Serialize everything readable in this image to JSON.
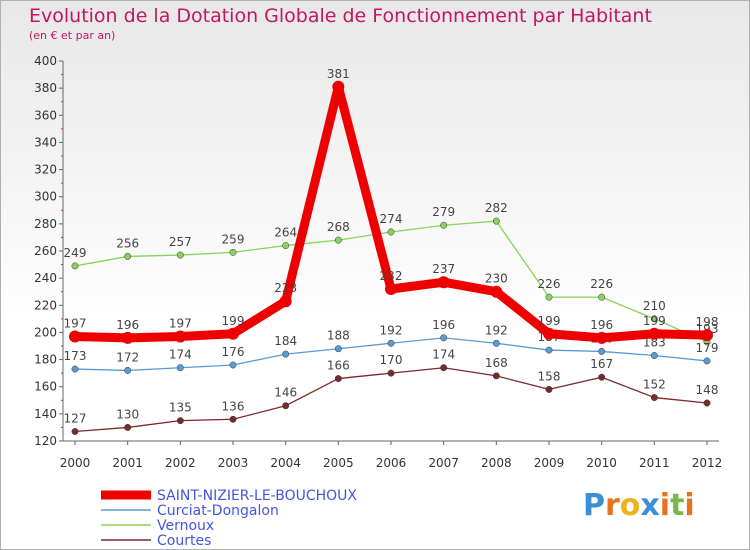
{
  "header": {
    "title": "Evolution de la Dotation Globale de Fonctionnement par Habitant",
    "subtitle": "(en € et par an)"
  },
  "brand": {
    "text": "Proxiti",
    "colors": [
      "#3b8fd6",
      "#e8731c",
      "#f0b21b",
      "#3b8fd6",
      "#e8731c",
      "#7ab648",
      "#e8731c"
    ]
  },
  "chart_data": {
    "type": "line",
    "title": "Evolution de la Dotation Globale de Fonctionnement par Habitant",
    "subtitle": "(en € et par an)",
    "xlabel": "",
    "ylabel": "",
    "x": [
      "2000",
      "2001",
      "2002",
      "2003",
      "2004",
      "2005",
      "2006",
      "2007",
      "2008",
      "2009",
      "2010",
      "2011",
      "2012"
    ],
    "ylim": [
      120,
      400
    ],
    "yticks": [
      120,
      140,
      160,
      180,
      200,
      220,
      240,
      260,
      280,
      300,
      320,
      340,
      360,
      380,
      400
    ],
    "grid": false,
    "legend": "bottom-left",
    "series": [
      {
        "name": "SAINT-NIZIER-LE-BOUCHOUX",
        "color": "#ee0000",
        "values": [
          197,
          196,
          197,
          199,
          223,
          381,
          232,
          237,
          230,
          199,
          196,
          199,
          198
        ]
      },
      {
        "name": "Curciat-Dongalon",
        "color": "#5b9bd5",
        "values": [
          173,
          172,
          174,
          176,
          184,
          188,
          192,
          196,
          192,
          187,
          186,
          183,
          179
        ]
      },
      {
        "name": "Vernoux",
        "color": "#88d45a",
        "values": [
          249,
          256,
          257,
          259,
          264,
          268,
          274,
          279,
          282,
          226,
          226,
          210,
          193
        ]
      },
      {
        "name": "Courtes",
        "color": "#7a2a2a",
        "values": [
          127,
          130,
          135,
          136,
          146,
          166,
          170,
          174,
          168,
          158,
          167,
          152,
          148
        ]
      }
    ]
  }
}
